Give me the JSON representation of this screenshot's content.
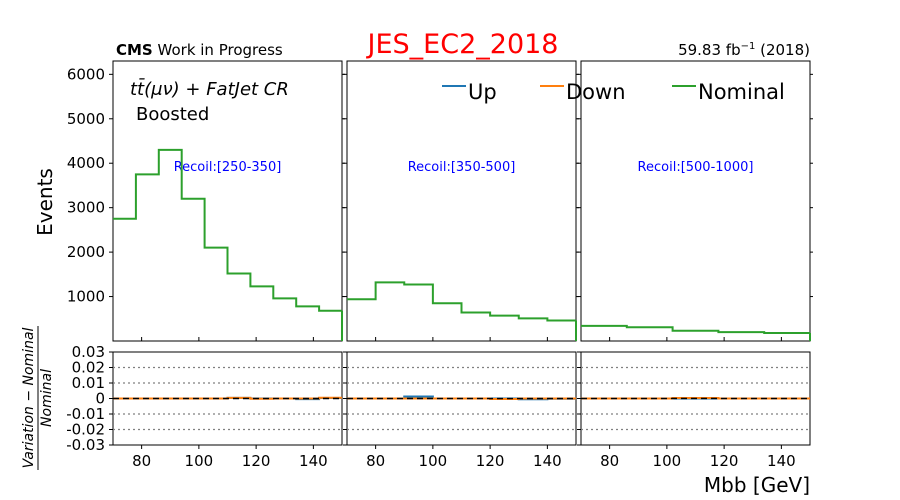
{
  "figure": {
    "title": "JES_EC2_2018",
    "title_color": "#ff0000",
    "cms_label": "CMS",
    "cms_suffix": " Work in Progress",
    "lumi_value": "59.83 fb",
    "lumi_exp": "−1",
    "lumi_year": " (2018)",
    "region_line1": "tt̄(μν) + FatJet CR",
    "region_line2": "Boosted",
    "ylabel_top": "Events",
    "ylabel_bottom_num": "Variation − Nominal",
    "ylabel_bottom_den": "Nominal",
    "xlabel": "Mbb [GeV]"
  },
  "legend": [
    {
      "label": "Up",
      "color": "#1f77b4"
    },
    {
      "label": "Down",
      "color": "#ff7f0e"
    },
    {
      "label": "Nominal",
      "color": "#2ca02c"
    }
  ],
  "chart_data": {
    "type": "step-histogram",
    "x_edges": [
      70,
      80,
      90,
      100,
      110,
      120,
      130,
      140,
      150
    ],
    "xlim": [
      70,
      150
    ],
    "x_ticks": [
      80,
      100,
      120,
      140
    ],
    "top_ylim": [
      0,
      6300
    ],
    "top_y_ticks": [
      1000,
      2000,
      3000,
      4000,
      5000,
      6000
    ],
    "bottom_ylim": [
      -0.03,
      0.03
    ],
    "bottom_y_ticks": [
      "0.03",
      "0.02",
      "0.01",
      "0",
      "-0.01",
      "-0.02",
      "-0.03"
    ],
    "bottom_y_values": [
      0.03,
      0.02,
      0.01,
      0,
      -0.01,
      -0.02,
      -0.03
    ],
    "bottom_grid": [
      0.02,
      0.01,
      -0.01,
      -0.02
    ],
    "panels": [
      {
        "label": "Recoil:[250-350]",
        "x_edges": [
          70,
          78,
          86,
          94,
          102,
          110,
          118,
          126,
          134,
          142,
          150
        ],
        "nominal": [
          2750,
          3750,
          4300,
          3200,
          2100,
          1520,
          1230,
          960,
          780,
          680
        ],
        "up_ratio": [
          0,
          0,
          0,
          0,
          0,
          0.0004,
          0,
          0,
          -0.0004,
          0.0003
        ],
        "down_ratio": [
          0,
          0,
          0,
          0,
          0,
          0.0004,
          -0.0002,
          0,
          0,
          0.0005
        ]
      },
      {
        "label": "Recoil:[350-500]",
        "x_edges": [
          70,
          80,
          90,
          100,
          110,
          120,
          130,
          140,
          150
        ],
        "nominal": [
          940,
          1320,
          1270,
          850,
          640,
          570,
          510,
          460
        ],
        "up_ratio": [
          0,
          0,
          0.0013,
          0,
          0,
          0,
          -0.0005,
          -0.0002
        ],
        "down_ratio": [
          0,
          0,
          0,
          0,
          0,
          -0.0003,
          0,
          0
        ]
      },
      {
        "label": "Recoil:[500-1000]",
        "x_edges": [
          70,
          86,
          102,
          118,
          134,
          150
        ],
        "nominal": [
          340,
          310,
          230,
          200,
          180
        ],
        "up_ratio": [
          0,
          0,
          0,
          0,
          0
        ],
        "down_ratio": [
          0,
          0,
          0.0003,
          0,
          0
        ]
      }
    ]
  }
}
